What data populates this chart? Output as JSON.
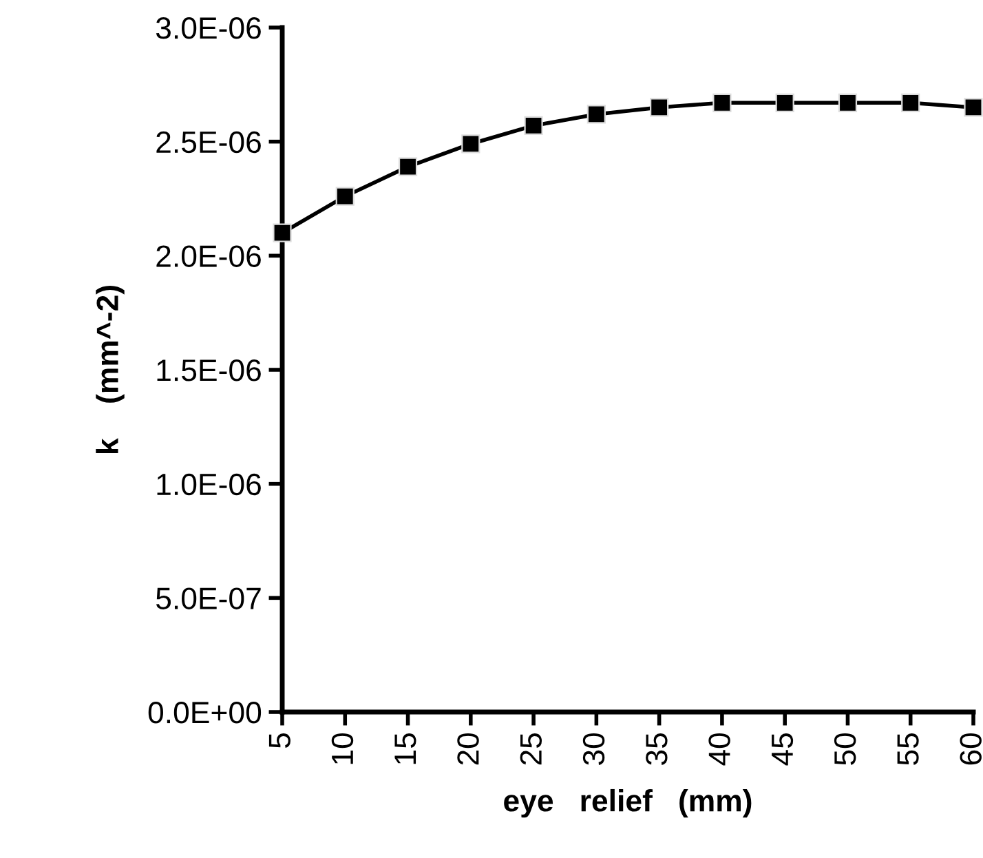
{
  "chart_data": {
    "type": "line",
    "xlabel": "eye   relief   (mm)",
    "ylabel": "k    (mm^-2)",
    "x": [
      5,
      10,
      15,
      20,
      25,
      30,
      35,
      40,
      45,
      50,
      55,
      60
    ],
    "series": [
      {
        "color": "#000000",
        "values": [
          2.1e-06,
          2.26e-06,
          2.39e-06,
          2.49e-06,
          2.57e-06,
          2.62e-06,
          2.65e-06,
          2.67e-06,
          2.67e-06,
          2.67e-06,
          2.67e-06,
          2.65e-06
        ]
      }
    ],
    "xlim": [
      5,
      60
    ],
    "xticks": [
      5,
      10,
      15,
      20,
      25,
      30,
      35,
      40,
      45,
      50,
      55,
      60
    ],
    "ylim": [
      0,
      3e-06
    ],
    "yticks": [
      {
        "value": 0,
        "label": "0.0E+00"
      },
      {
        "value": 5e-07,
        "label": "5.0E-07"
      },
      {
        "value": 1e-06,
        "label": "1.0E-06"
      },
      {
        "value": 1.5e-06,
        "label": "1.5E-06"
      },
      {
        "value": 2e-06,
        "label": "2.0E-06"
      },
      {
        "value": 2.5e-06,
        "label": "2.5E-06"
      },
      {
        "value": 3e-06,
        "label": "3.0E-06"
      }
    ],
    "grid": false,
    "legend": false,
    "marker": "square",
    "line_style": "solid"
  }
}
